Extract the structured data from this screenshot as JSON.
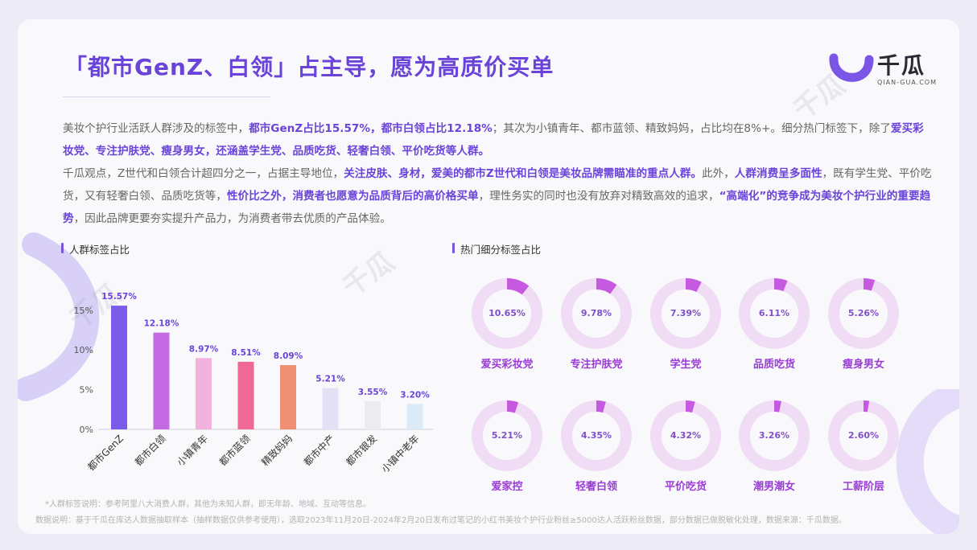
{
  "page": {
    "title": "「都市GenZ、白领」占主导，愿为高质价买单",
    "logo_name": "千瓜",
    "logo_url": "QIAN-GUA.COM"
  },
  "paragraphs": [
    {
      "segments": [
        {
          "text": "美妆个护行业活跃人群涉及的标签中，",
          "bold": false
        },
        {
          "text": "都市GenZ占比15.57%，都市白领占比12.18%",
          "bold": true
        },
        {
          "text": "；其次为小镇青年、都市蓝领、精致妈妈，占比均在8%+。细分热门标签下，除了",
          "bold": false
        },
        {
          "text": "爱买彩妆党、专注护肤党、瘦身男女，还涵盖学生党、品质吃货、轻奢白领、平价吃货等人群。",
          "bold": true
        }
      ]
    },
    {
      "segments": [
        {
          "text": "千瓜观点，Z世代和白领合计超四分之一，占据主导地位，",
          "bold": false
        },
        {
          "text": "关注皮肤、身材，爱美的都市Z世代和白领是美妆品牌需瞄准的重点人群。",
          "bold": true
        },
        {
          "text": "此外，",
          "bold": false
        },
        {
          "text": "人群消费呈多面性",
          "bold": true
        },
        {
          "text": "，既有学生党、平价吃货，又有轻奢白领、品质吃货等，",
          "bold": false
        },
        {
          "text": "性价比之外，消费者也愿意为品质背后的高价格买单",
          "bold": true
        },
        {
          "text": "，理性务实的同时也没有放弃对精致高效的追求，",
          "bold": false
        },
        {
          "text": "“高端化”的竞争成为美妆个护行业的重要趋势",
          "bold": true
        },
        {
          "text": "，因此品牌更要夯实提升产品力，为消费者带去优质的产品体验。",
          "bold": false
        }
      ]
    }
  ],
  "sections": {
    "left_title": "人群标签占比",
    "right_title": "热门细分标签占比"
  },
  "chart_data": [
    {
      "type": "bar",
      "title": "人群标签占比",
      "categories": [
        "都市GenZ",
        "都市白领",
        "小镇青年",
        "都市蓝领",
        "精致妈妈",
        "都市中产",
        "都市银发",
        "小镇中老年"
      ],
      "values": [
        15.57,
        12.18,
        8.97,
        8.51,
        8.09,
        5.21,
        3.55,
        3.2
      ],
      "value_labels": [
        "15.57%",
        "12.18%",
        "8.97%",
        "8.51%",
        "8.09%",
        "5.21%",
        "3.55%",
        "3.20%"
      ],
      "colors": [
        "#7b5ce8",
        "#c46be3",
        "#f3b1dd",
        "#ee6a94",
        "#ef8f74",
        "#e2e1f6",
        "#ececef",
        "#dce9f7"
      ],
      "yticks": [
        "0%",
        "5%",
        "10%",
        "15%"
      ],
      "ylim": [
        0,
        17
      ],
      "grid": false
    },
    {
      "type": "pie",
      "title": "热门细分标签占比",
      "labels": [
        "爱买彩妆党",
        "专注护肤党",
        "学生党",
        "品质吃货",
        "瘦身男女",
        "爱家控",
        "轻奢白领",
        "平价吃货",
        "潮男潮女",
        "工薪阶层"
      ],
      "values": [
        10.65,
        9.78,
        7.39,
        6.11,
        5.26,
        5.21,
        4.35,
        4.32,
        3.26,
        2.6
      ],
      "value_labels": [
        "10.65%",
        "9.78%",
        "7.39%",
        "6.11%",
        "5.26%",
        "5.21%",
        "4.35%",
        "4.32%",
        "3.26%",
        "2.60%"
      ],
      "ring_color": "#f0dcf5",
      "fill_color": "#c55ae0"
    }
  ],
  "notes": {
    "label_note": "*人群标签说明：参考阿里八大消费人群，其他为未知人群，即无年龄、地域、互动等信息。",
    "data_note": "数据说明：基于千瓜在库达人数据抽取样本（抽样数据仅供参考使用），选取2023年11月20日-2024年2月20日发布过笔记的小红书美妆个护行业粉丝≥5000达人活跃粉丝数据，部分数据已做脱敏化处理，数据来源：千瓜数据。"
  },
  "watermark": {
    "text": "千瓜",
    "sub": "QIAN-GUA.COM"
  }
}
